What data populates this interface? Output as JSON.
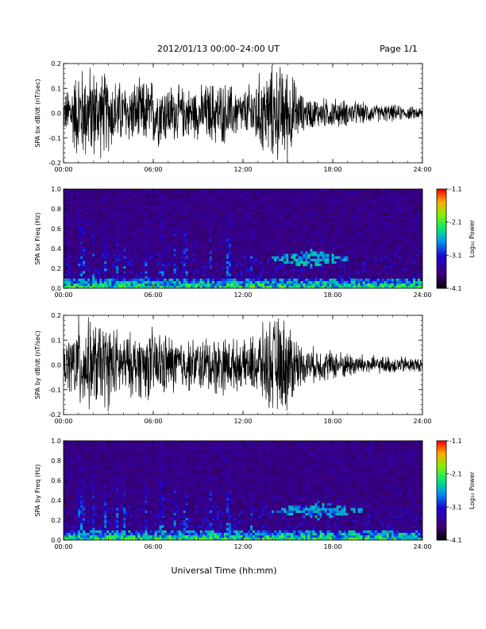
{
  "header": {
    "title": "2012/01/13  00:00–24:00 UT",
    "page": "Page 1/1"
  },
  "footer": {
    "xlabel": "Universal Time (hh:mm)"
  },
  "colorbar": {
    "label": "Log₁₀ Power",
    "ticks": [
      "-1.1",
      "-2.1",
      "-3.1",
      "-4.1"
    ]
  },
  "chart_data": [
    {
      "type": "line",
      "ylabel": "SPA bx dB/dt (nT/sec)",
      "xlim": [
        0,
        24
      ],
      "ylim": [
        -0.2,
        0.2
      ],
      "x_ticks": [
        "00:00",
        "06:00",
        "12:00",
        "18:00",
        "24:00"
      ],
      "y_ticks": [
        "-0.2",
        "-0.1",
        "0.0",
        "0.1",
        "0.2"
      ],
      "envelope": {
        "hours": [
          0,
          1,
          2,
          3,
          4,
          5,
          6,
          7,
          8,
          9,
          10,
          11,
          12,
          13,
          14,
          15,
          16,
          17,
          18,
          19,
          20,
          21,
          22,
          23,
          24
        ],
        "amplitude": [
          0.08,
          0.22,
          0.22,
          0.18,
          0.14,
          0.15,
          0.16,
          0.14,
          0.12,
          0.12,
          0.15,
          0.14,
          0.1,
          0.18,
          0.22,
          0.22,
          0.08,
          0.07,
          0.07,
          0.06,
          0.05,
          0.04,
          0.04,
          0.03,
          0.03
        ]
      }
    },
    {
      "type": "heatmap",
      "ylabel": "SPA bx Freq (Hz)",
      "xlim": [
        0,
        24
      ],
      "ylim": [
        0,
        1.0
      ],
      "clim": [
        -4.1,
        -1.1
      ],
      "x_ticks": [
        "00:00",
        "06:00",
        "12:00",
        "18:00",
        "24:00"
      ],
      "y_ticks": [
        "0.0",
        "0.2",
        "0.4",
        "0.6",
        "0.8",
        "1.0"
      ],
      "features": [
        {
          "hours": [
            13.5,
            19.5
          ],
          "freq": [
            0.2,
            0.42
          ],
          "level": -2.8
        },
        {
          "hours": [
            0,
            24
          ],
          "freq": [
            0.0,
            0.1
          ],
          "level": -2.6
        }
      ]
    },
    {
      "type": "line",
      "ylabel": "SPA by dB/dt (nT/sec)",
      "xlim": [
        0,
        24
      ],
      "ylim": [
        -0.2,
        0.2
      ],
      "x_ticks": [
        "00:00",
        "06:00",
        "12:00",
        "18:00",
        "24:00"
      ],
      "y_ticks": [
        "-0.2",
        "-0.1",
        "0.0",
        "0.1",
        "0.2"
      ],
      "envelope": {
        "hours": [
          0,
          1,
          2,
          3,
          4,
          5,
          6,
          7,
          8,
          9,
          10,
          11,
          12,
          13,
          14,
          15,
          16,
          17,
          18,
          19,
          20,
          21,
          22,
          23,
          24
        ],
        "amplitude": [
          0.08,
          0.22,
          0.2,
          0.2,
          0.14,
          0.15,
          0.17,
          0.14,
          0.12,
          0.12,
          0.14,
          0.13,
          0.1,
          0.16,
          0.22,
          0.22,
          0.08,
          0.08,
          0.07,
          0.06,
          0.05,
          0.04,
          0.04,
          0.04,
          0.03
        ]
      }
    },
    {
      "type": "heatmap",
      "ylabel": "SPA by Freq (Hz)",
      "xlim": [
        0,
        24
      ],
      "ylim": [
        0,
        1.0
      ],
      "clim": [
        -4.1,
        -1.1
      ],
      "x_ticks": [
        "00:00",
        "06:00",
        "12:00",
        "18:00",
        "24:00"
      ],
      "y_ticks": [
        "0.0",
        "0.2",
        "0.4",
        "0.6",
        "0.8",
        "1.0"
      ],
      "features": [
        {
          "hours": [
            13.5,
            20.5
          ],
          "freq": [
            0.2,
            0.42
          ],
          "level": -2.9
        },
        {
          "hours": [
            0,
            24
          ],
          "freq": [
            0.0,
            0.1
          ],
          "level": -2.6
        }
      ]
    }
  ]
}
